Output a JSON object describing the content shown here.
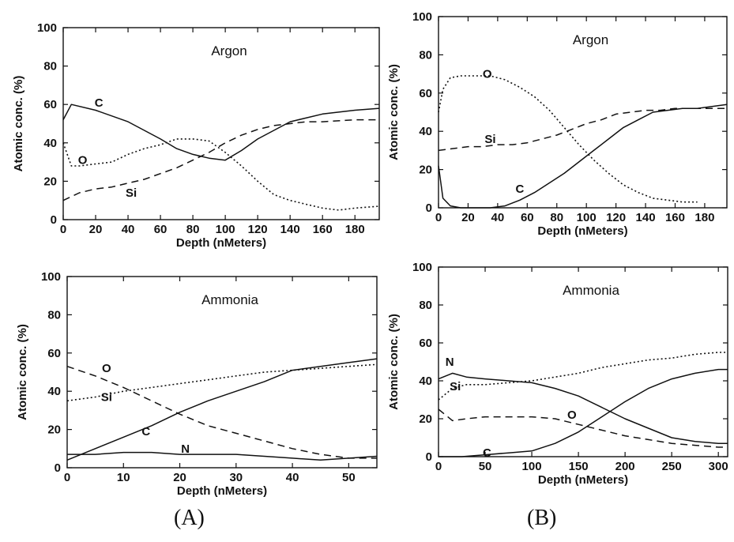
{
  "panel_captions": [
    "(A)",
    "(B)"
  ],
  "chart_data": [
    {
      "type": "line",
      "title": "Argon",
      "xlabel": "Depth (nMeters)",
      "ylabel": "Atomic conc. (%)",
      "xlim": [
        0,
        195
      ],
      "ylim": [
        0,
        100
      ],
      "xticks": [
        0,
        20,
        40,
        60,
        80,
        100,
        120,
        140,
        160,
        180
      ],
      "yticks": [
        0,
        20,
        40,
        60,
        80,
        100
      ],
      "grid": false,
      "series": [
        {
          "name": "C",
          "style": "solid",
          "label_at": [
            22,
            61
          ],
          "x": [
            0,
            5,
            20,
            40,
            60,
            70,
            80,
            90,
            100,
            110,
            120,
            140,
            160,
            180,
            195
          ],
          "y": [
            52,
            60,
            57,
            51,
            42,
            37,
            34,
            32,
            31,
            36,
            42,
            51,
            55,
            57,
            58
          ]
        },
        {
          "name": "O",
          "style": "dotted",
          "label_at": [
            12,
            31
          ],
          "x": [
            0,
            5,
            10,
            20,
            30,
            40,
            50,
            60,
            70,
            80,
            90,
            100,
            110,
            120,
            130,
            140,
            150,
            160,
            170,
            180,
            195
          ],
          "y": [
            40,
            28,
            28,
            29,
            30,
            34,
            37,
            39,
            42,
            42,
            41,
            35,
            28,
            20,
            13,
            10,
            8,
            6,
            5,
            6,
            7
          ]
        },
        {
          "name": "Si",
          "style": "dashed",
          "label_at": [
            42,
            14
          ],
          "x": [
            0,
            10,
            20,
            30,
            40,
            50,
            60,
            70,
            80,
            90,
            100,
            110,
            120,
            130,
            140,
            150,
            160,
            180,
            195
          ],
          "y": [
            10,
            14,
            16,
            17,
            19,
            21,
            24,
            27,
            31,
            35,
            40,
            44,
            47,
            49,
            50,
            51,
            51,
            52,
            52
          ]
        }
      ]
    },
    {
      "type": "line",
      "title": "Argon",
      "xlabel": "Depth (nMeters)",
      "ylabel": "Atomic conc. (%)",
      "xlim": [
        0,
        195
      ],
      "ylim": [
        0,
        100
      ],
      "xticks": [
        0,
        20,
        40,
        60,
        80,
        100,
        120,
        140,
        160,
        180
      ],
      "yticks": [
        0,
        20,
        40,
        60,
        80,
        100
      ],
      "grid": false,
      "series": [
        {
          "name": "O",
          "style": "dotted",
          "label_at": [
            33,
            70
          ],
          "x": [
            0,
            3,
            8,
            15,
            25,
            35,
            45,
            55,
            65,
            75,
            85,
            95,
            105,
            115,
            125,
            135,
            145,
            155,
            165,
            175
          ],
          "y": [
            50,
            62,
            68,
            69,
            69,
            69,
            67,
            63,
            58,
            51,
            42,
            33,
            25,
            18,
            12,
            8,
            5,
            4,
            3,
            3
          ]
        },
        {
          "name": "Si",
          "style": "dashed",
          "label_at": [
            35,
            36
          ],
          "x": [
            0,
            10,
            20,
            30,
            40,
            50,
            60,
            70,
            80,
            90,
            100,
            110,
            120,
            130,
            140,
            150,
            160,
            170,
            180,
            195
          ],
          "y": [
            30,
            31,
            32,
            32,
            33,
            33,
            34,
            36,
            38,
            41,
            44,
            46,
            49,
            50,
            51,
            51,
            52,
            52,
            52,
            52
          ]
        },
        {
          "name": "C",
          "style": "solid",
          "label_at": [
            55,
            10
          ],
          "x": [
            0,
            3,
            8,
            15,
            25,
            35,
            45,
            55,
            65,
            75,
            85,
            95,
            105,
            115,
            125,
            135,
            145,
            155,
            165,
            175,
            185,
            195
          ],
          "y": [
            22,
            5,
            1,
            0,
            0,
            0,
            1,
            4,
            8,
            13,
            18,
            24,
            30,
            36,
            42,
            46,
            50,
            51,
            52,
            52,
            53,
            54
          ]
        }
      ]
    },
    {
      "type": "line",
      "title": "Ammonia",
      "xlabel": "Depth (nMeters)",
      "ylabel": "Atomic conc. (%)",
      "xlim": [
        0,
        55
      ],
      "ylim": [
        0,
        100
      ],
      "xticks": [
        0,
        10,
        20,
        30,
        40,
        50
      ],
      "yticks": [
        0,
        20,
        40,
        60,
        80,
        100
      ],
      "grid": false,
      "series": [
        {
          "name": "O",
          "style": "dashed",
          "label_at": [
            7,
            52
          ],
          "x": [
            0,
            5,
            10,
            15,
            20,
            25,
            30,
            35,
            40,
            45,
            50,
            55
          ],
          "y": [
            53,
            48,
            42,
            35,
            28,
            22,
            18,
            14,
            10,
            7,
            5,
            5
          ]
        },
        {
          "name": "Si",
          "style": "dotted",
          "label_at": [
            7,
            37
          ],
          "x": [
            0,
            5,
            10,
            15,
            20,
            25,
            30,
            35,
            40,
            45,
            50,
            55
          ],
          "y": [
            35,
            37,
            40,
            42,
            44,
            46,
            48,
            50,
            51,
            52,
            53,
            54
          ]
        },
        {
          "name": "C",
          "style": "solid",
          "label_at": [
            14,
            19
          ],
          "x": [
            0,
            5,
            10,
            15,
            20,
            25,
            30,
            35,
            40,
            45,
            50,
            55
          ],
          "y": [
            4,
            10,
            16,
            22,
            29,
            35,
            40,
            45,
            51,
            53,
            55,
            57
          ]
        },
        {
          "name": "N",
          "style": "solid",
          "label_at": [
            21,
            10
          ],
          "x": [
            0,
            5,
            10,
            15,
            20,
            25,
            30,
            35,
            40,
            45,
            50,
            55
          ],
          "y": [
            7,
            7,
            8,
            8,
            7,
            7,
            7,
            6,
            5,
            4,
            5,
            6
          ]
        }
      ]
    },
    {
      "type": "line",
      "title": "Ammonia",
      "xlabel": "Depth (nMeters)",
      "ylabel": "Atomic conc. (%)",
      "xlim": [
        0,
        310
      ],
      "ylim": [
        0,
        100
      ],
      "xticks": [
        0,
        50,
        100,
        150,
        200,
        250,
        300
      ],
      "yticks": [
        0,
        20,
        40,
        60,
        80,
        100
      ],
      "grid": false,
      "series": [
        {
          "name": "N",
          "style": "solid",
          "label_at": [
            12,
            50
          ],
          "x": [
            0,
            15,
            30,
            50,
            75,
            100,
            125,
            150,
            175,
            200,
            225,
            250,
            275,
            300,
            310
          ],
          "y": [
            41,
            44,
            42,
            41,
            40,
            39,
            36,
            32,
            26,
            20,
            15,
            10,
            8,
            7,
            7
          ]
        },
        {
          "name": "Si",
          "style": "dotted",
          "label_at": [
            18,
            37
          ],
          "x": [
            0,
            15,
            30,
            50,
            75,
            100,
            125,
            150,
            175,
            200,
            225,
            250,
            275,
            300,
            310
          ],
          "y": [
            30,
            36,
            38,
            38,
            39,
            40,
            42,
            44,
            47,
            49,
            51,
            52,
            54,
            55,
            55
          ]
        },
        {
          "name": "O",
          "style": "dashed",
          "label_at": [
            143,
            22
          ],
          "x": [
            0,
            15,
            30,
            50,
            75,
            100,
            125,
            150,
            175,
            200,
            225,
            250,
            275,
            300,
            310
          ],
          "y": [
            25,
            19,
            20,
            21,
            21,
            21,
            20,
            17,
            14,
            11,
            9,
            7,
            6,
            5,
            5
          ]
        },
        {
          "name": "C",
          "style": "solid",
          "label_at": [
            52,
            2
          ],
          "x": [
            0,
            25,
            50,
            75,
            100,
            125,
            150,
            175,
            200,
            225,
            250,
            275,
            300,
            310
          ],
          "y": [
            0,
            0,
            1,
            2,
            3,
            7,
            13,
            21,
            29,
            36,
            41,
            44,
            46,
            46
          ]
        }
      ]
    }
  ]
}
